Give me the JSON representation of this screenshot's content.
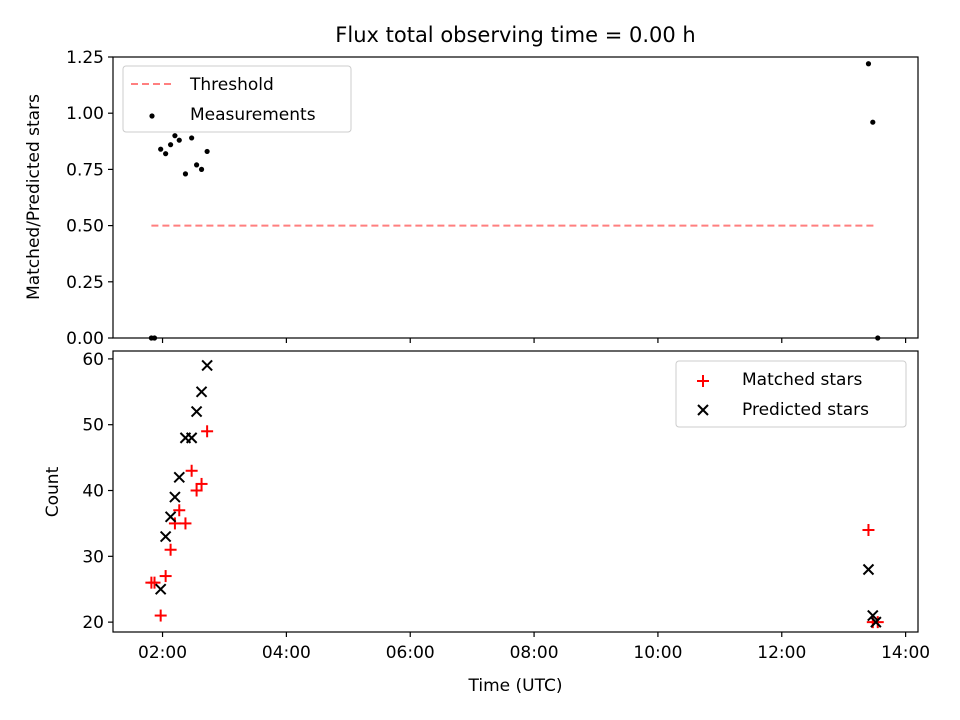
{
  "chart_data": [
    {
      "type": "scatter",
      "title": "Flux total observing time = 0.00 h",
      "xlabel": "",
      "ylabel": "Matched/Predicted stars",
      "xlim": [
        1.2,
        14.2
      ],
      "ylim": [
        0,
        1.25
      ],
      "yticks": [
        0,
        0.25,
        0.5,
        0.75,
        1.0,
        1.25
      ],
      "ytick_labels": [
        "0.00",
        "0.25",
        "0.50",
        "0.75",
        "1.00",
        "1.25"
      ],
      "xticks": [
        2,
        4,
        6,
        8,
        10,
        12,
        14
      ],
      "xtick_labels": [],
      "legend_position": "upper-left",
      "grid": false,
      "threshold": {
        "name": "Threshold",
        "color": "#ff7f7f",
        "value": 0.5,
        "x": [
          1.82,
          13.52
        ]
      },
      "series": [
        {
          "name": "Measurements",
          "color": "#000000",
          "marker": "dot",
          "x": [
            1.82,
            1.87,
            1.97,
            2.05,
            2.13,
            2.2,
            2.27,
            2.37,
            2.47,
            2.55,
            2.63,
            2.72,
            13.4,
            13.47,
            13.55
          ],
          "y": [
            0.0,
            0.0,
            0.84,
            0.82,
            0.86,
            0.9,
            0.88,
            0.73,
            0.89,
            0.77,
            0.75,
            0.83,
            1.22,
            0.96,
            0.0
          ]
        }
      ]
    },
    {
      "type": "scatter",
      "title": "",
      "xlabel": "Time (UTC)",
      "ylabel": "Count",
      "xlim": [
        1.2,
        14.2
      ],
      "ylim": [
        18.5,
        61.2
      ],
      "yticks": [
        20,
        30,
        40,
        50,
        60
      ],
      "ytick_labels": [
        "20",
        "30",
        "40",
        "50",
        "60"
      ],
      "xticks": [
        2,
        4,
        6,
        8,
        10,
        12,
        14
      ],
      "xtick_labels": [
        "02:00",
        "04:00",
        "06:00",
        "08:00",
        "10:00",
        "12:00",
        "14:00"
      ],
      "legend_position": "upper-right",
      "grid": false,
      "series": [
        {
          "name": "Matched stars",
          "color": "#ff0000",
          "marker": "plus",
          "x": [
            1.82,
            1.87,
            1.97,
            2.05,
            2.13,
            2.2,
            2.27,
            2.37,
            2.47,
            2.55,
            2.63,
            2.72,
            13.4,
            13.47,
            13.55
          ],
          "y": [
            26,
            26,
            21,
            27,
            31,
            35,
            37,
            35,
            43,
            40,
            41,
            49,
            34,
            20,
            20
          ]
        },
        {
          "name": "Predicted stars",
          "color": "#000000",
          "marker": "x",
          "x": [
            1.97,
            2.05,
            2.13,
            2.2,
            2.27,
            2.37,
            2.47,
            2.55,
            2.63,
            2.72,
            13.4,
            13.47,
            13.52
          ],
          "y": [
            25,
            33,
            36,
            39,
            42,
            48,
            48,
            52,
            55,
            59,
            28,
            21,
            20
          ]
        }
      ]
    }
  ]
}
